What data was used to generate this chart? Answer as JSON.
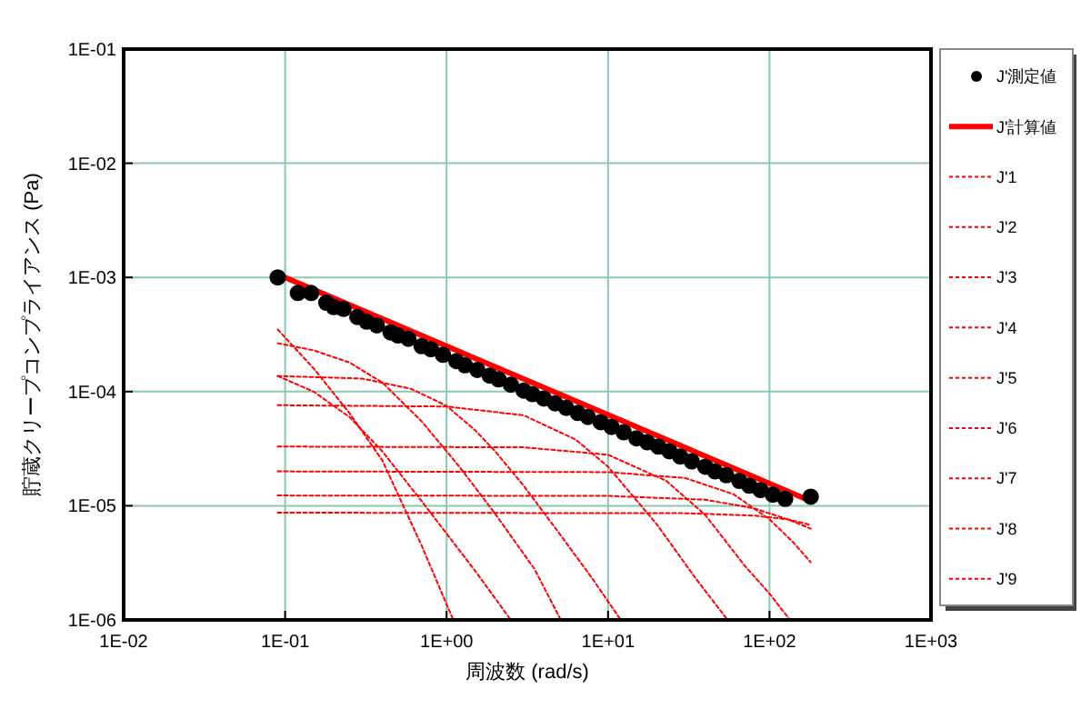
{
  "chart_data": {
    "type": "line",
    "xlabel": "周波数 (rad/s)",
    "ylabel": "貯蔵クリープコンプライアンス (Pa)",
    "log": "xy",
    "grid": true,
    "legend": "right",
    "xlim": [
      0.01,
      1000
    ],
    "xticks": [
      {
        "value": 0.01,
        "label": "1E-02"
      },
      {
        "value": 0.1,
        "label": "1E-01"
      },
      {
        "value": 1,
        "label": "1E+00"
      },
      {
        "value": 10,
        "label": "1E+01"
      },
      {
        "value": 100,
        "label": "1E+02"
      },
      {
        "value": 1000,
        "label": "1E+03"
      }
    ],
    "ylim": [
      1e-06,
      0.1
    ],
    "yticks": [
      {
        "value": 1e-06,
        "label": "1E-06"
      },
      {
        "value": 1e-05,
        "label": "1E-05"
      },
      {
        "value": 0.0001,
        "label": "1E-04"
      },
      {
        "value": 0.001,
        "label": "1E-03"
      },
      {
        "value": 0.01,
        "label": "1E-02"
      },
      {
        "value": 0.1,
        "label": "1E-01"
      }
    ],
    "series": [
      {
        "name": "J'測定値",
        "type": "scatter",
        "marker": "circle",
        "color": "#000000",
        "x": [
          0.09,
          0.12,
          0.145,
          0.18,
          0.2,
          0.23,
          0.28,
          0.32,
          0.37,
          0.45,
          0.5,
          0.58,
          0.7,
          0.8,
          0.95,
          1.15,
          1.3,
          1.55,
          1.85,
          2.1,
          2.5,
          3,
          3.4,
          4,
          4.7,
          5.5,
          6.5,
          7.5,
          9,
          10.5,
          12.5,
          15,
          17.5,
          20.5,
          24,
          28,
          33,
          40,
          46,
          54,
          65,
          75,
          88,
          105,
          125,
          180
        ],
        "values": [
          0.001,
          0.00073,
          0.00073,
          0.0006,
          0.00055,
          0.00053,
          0.00045,
          0.00041,
          0.00038,
          0.00033,
          0.00031,
          0.00029,
          0.00025,
          0.000235,
          0.00021,
          0.000185,
          0.00017,
          0.000155,
          0.000138,
          0.000128,
          0.000115,
          0.000102,
          9.5e-05,
          8.7e-05,
          7.9e-05,
          7.2e-05,
          6.5e-05,
          6e-05,
          5.4e-05,
          4.9e-05,
          4.4e-05,
          3.9e-05,
          3.6e-05,
          3.3e-05,
          3e-05,
          2.7e-05,
          2.45e-05,
          2.2e-05,
          2e-05,
          1.85e-05,
          1.65e-05,
          1.5e-05,
          1.37e-05,
          1.25e-05,
          1.15e-05,
          1.2e-05
        ]
      },
      {
        "name": "J'計算値",
        "line_style": "solid",
        "color": "#ff0000",
        "x": [
          0.1,
          180
        ],
        "values": [
          0.001,
          1.1e-05
        ]
      },
      {
        "name": "J'1",
        "line_style": "dashed",
        "color": "#ff0000",
        "x": [
          0.09,
          0.15,
          0.25,
          0.4,
          0.7,
          1.1
        ],
        "values": [
          0.00035,
          0.00016,
          6.5e-05,
          2.5e-05,
          4.5e-06,
          1e-06
        ]
      },
      {
        "name": "J'2",
        "line_style": "dashed",
        "color": "#ff0000",
        "x": [
          0.09,
          0.15,
          0.25,
          0.4,
          0.7,
          1.5,
          2.5
        ],
        "values": [
          0.000137,
          0.0001,
          6e-05,
          3e-05,
          1.1e-05,
          2.7e-06,
          1e-06
        ]
      },
      {
        "name": "J'3",
        "line_style": "dashed",
        "color": "#ff0000",
        "x": [
          0.09,
          0.15,
          0.25,
          0.4,
          0.7,
          1.2,
          2,
          3.5,
          5.1
        ],
        "values": [
          0.000265,
          0.00023,
          0.00018,
          0.00012,
          5.5e-05,
          2.2e-05,
          8.5e-06,
          2.8e-06,
          1e-06
        ]
      },
      {
        "name": "J'4",
        "line_style": "dashed",
        "color": "#ff0000",
        "x": [
          0.09,
          0.3,
          0.6,
          1,
          1.5,
          2,
          3,
          5,
          8,
          12
        ],
        "values": [
          0.000137,
          0.00013,
          0.000106,
          7.5e-05,
          4.6e-05,
          3e-05,
          1.5e-05,
          5.7e-06,
          2.3e-06,
          1e-06
        ]
      },
      {
        "name": "J'5",
        "line_style": "dashed",
        "color": "#ff0000",
        "x": [
          0.09,
          1,
          3,
          6.3,
          10,
          20,
          35,
          55
        ],
        "values": [
          7.6e-05,
          7.4e-05,
          6.2e-05,
          3.8e-05,
          2.2e-05,
          6.9e-06,
          2.3e-06,
          1e-06
        ]
      },
      {
        "name": "J'6",
        "line_style": "dashed",
        "color": "#ff0000",
        "x": [
          0.09,
          3,
          10,
          23,
          40,
          70,
          100,
          134
        ],
        "values": [
          3.3e-05,
          3.25e-05,
          2.8e-05,
          1.65e-05,
          8.3e-06,
          3e-06,
          1.7e-06,
          1e-06
        ]
      },
      {
        "name": "J'7",
        "line_style": "dashed",
        "color": "#ff0000",
        "x": [
          0.09,
          10,
          30,
          60,
          100,
          140,
          180
        ],
        "values": [
          2e-05,
          1.97e-05,
          1.75e-05,
          1.26e-05,
          7.6e-06,
          4.8e-06,
          3.2e-06
        ]
      },
      {
        "name": "J'8",
        "line_style": "dashed",
        "color": "#ff0000",
        "x": [
          0.09,
          10,
          40,
          80,
          130,
          180
        ],
        "values": [
          1.23e-05,
          1.22e-05,
          1.13e-05,
          9.5e-06,
          7.6e-06,
          6.3e-06
        ]
      },
      {
        "name": "J'9",
        "line_style": "dashed",
        "color": "#ff0000",
        "x": [
          0.09,
          30,
          80,
          130,
          180
        ],
        "values": [
          8.7e-06,
          8.6e-06,
          8.2e-06,
          7.6e-06,
          6.8e-06
        ]
      }
    ]
  }
}
